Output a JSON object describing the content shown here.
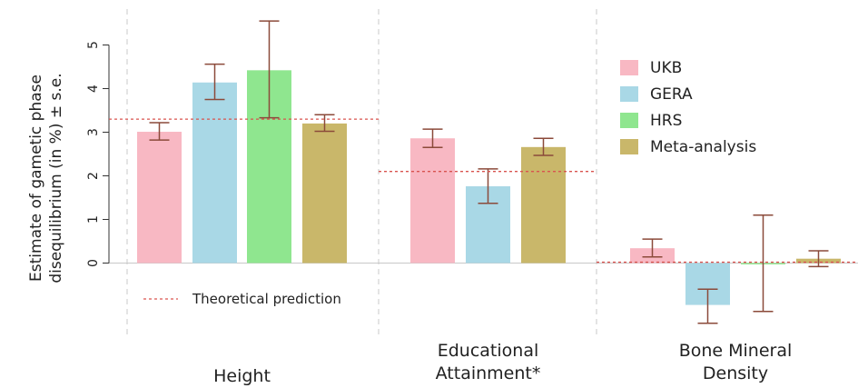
{
  "chart_data": {
    "type": "bar",
    "ylabel_lines": [
      "Estimate of gametic phase",
      "disequilibrium (in %) ± s.e."
    ],
    "ylim": [
      -1.5,
      5.6
    ],
    "yticks": [
      0,
      1,
      2,
      3,
      4,
      5
    ],
    "grid": false,
    "legend_position": "right",
    "series": [
      {
        "name": "UKB",
        "color": "#f8b8c3"
      },
      {
        "name": "GERA",
        "color": "#a9d8e6"
      },
      {
        "name": "HRS",
        "color": "#8fe68f"
      },
      {
        "name": "Meta-analysis",
        "color": "#c9b76a"
      }
    ],
    "prediction_label": "Theoretical prediction",
    "prediction_color": "#d9534f",
    "error_color": "#8b4a3a",
    "groups": [
      {
        "label_lines": [
          "Height"
        ],
        "prediction": 3.3,
        "bars": [
          {
            "series": "UKB",
            "value": 3.01,
            "low": 2.82,
            "high": 3.22
          },
          {
            "series": "GERA",
            "value": 4.14,
            "low": 3.75,
            "high": 4.56
          },
          {
            "series": "HRS",
            "value": 4.42,
            "low": 3.33,
            "high": 5.55
          },
          {
            "series": "Meta-analysis",
            "value": 3.2,
            "low": 3.02,
            "high": 3.4
          }
        ]
      },
      {
        "label_lines": [
          "Educational",
          "Attainment*"
        ],
        "prediction": 2.1,
        "bars": [
          {
            "series": "UKB",
            "value": 2.86,
            "low": 2.65,
            "high": 3.07
          },
          {
            "series": "GERA",
            "value": 1.76,
            "low": 1.37,
            "high": 2.16
          },
          {
            "series": "Meta-analysis",
            "value": 2.66,
            "low": 2.47,
            "high": 2.86
          }
        ]
      },
      {
        "label_lines": [
          "Bone Mineral",
          "Density"
        ],
        "prediction": 0.02,
        "bars": [
          {
            "series": "UKB",
            "value": 0.34,
            "low": 0.14,
            "high": 0.55
          },
          {
            "series": "GERA",
            "value": -0.96,
            "low": -1.38,
            "high": -0.6
          },
          {
            "series": "HRS",
            "value": -0.03,
            "low": -1.11,
            "high": 1.1
          },
          {
            "series": "Meta-analysis",
            "value": 0.1,
            "low": -0.08,
            "high": 0.28
          }
        ]
      }
    ]
  }
}
